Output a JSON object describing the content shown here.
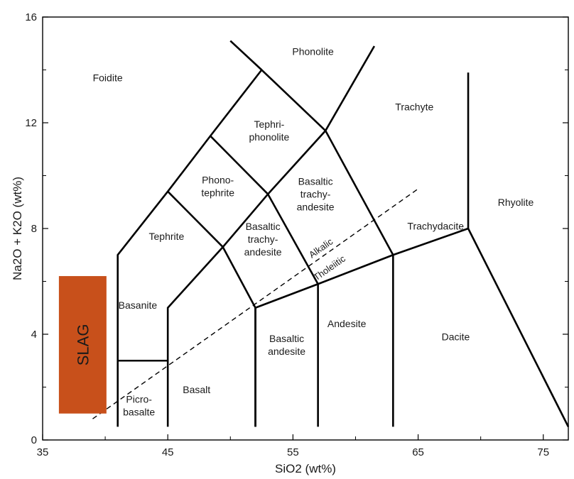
{
  "chart_data": {
    "type": "diagram",
    "xlabel": "SiO2 (wt%)",
    "ylabel": "Na2O + K2O (wt%)",
    "xlim": [
      35,
      77
    ],
    "ylim": [
      0,
      16
    ],
    "x_ticks": [
      35,
      45,
      55,
      65,
      75
    ],
    "y_ticks": [
      0,
      4,
      8,
      12,
      16
    ],
    "fields": [
      {
        "name": "Foidite",
        "lines": [
          "Foidite"
        ],
        "x": 40.2,
        "y": 13.7
      },
      {
        "name": "Phonolite",
        "lines": [
          "Phonolite"
        ],
        "x": 56.6,
        "y": 14.7
      },
      {
        "name": "Trachyte",
        "lines": [
          "Trachyte"
        ],
        "x": 64.7,
        "y": 12.6
      },
      {
        "name": "Tephri-phonolite",
        "lines": [
          "Tephri-",
          "phonolite"
        ],
        "x": 53.1,
        "y": 11.7
      },
      {
        "name": "Phono-tephrite",
        "lines": [
          "Phono-",
          "tephrite"
        ],
        "x": 49.0,
        "y": 9.6
      },
      {
        "name": "Basaltic trachy-andesite",
        "lines": [
          "Basaltic",
          "trachy-",
          "andesite"
        ],
        "x": 56.8,
        "y": 9.3
      },
      {
        "name": "Rhyolite",
        "lines": [
          "Rhyolite"
        ],
        "x": 72.8,
        "y": 9.0
      },
      {
        "name": "Tephrite",
        "lines": [
          "Tephrite"
        ],
        "x": 44.9,
        "y": 7.7
      },
      {
        "name": "Basaltic trachy-andesite",
        "lines": [
          "Basaltic",
          "trachy-",
          "andesite"
        ],
        "x": 52.6,
        "y": 7.6
      },
      {
        "name": "Trachydacite",
        "lines": [
          "Trachydacite"
        ],
        "x": 66.4,
        "y": 8.1
      },
      {
        "name": "Basanite",
        "lines": [
          "Basanite"
        ],
        "x": 42.6,
        "y": 5.1
      },
      {
        "name": "Andesite",
        "lines": [
          "Andesite"
        ],
        "x": 59.3,
        "y": 4.4
      },
      {
        "name": "Basaltic andesite",
        "lines": [
          "Basaltic",
          "andesite"
        ],
        "x": 54.5,
        "y": 3.6
      },
      {
        "name": "Dacite",
        "lines": [
          "Dacite"
        ],
        "x": 68.0,
        "y": 3.9
      },
      {
        "name": "Basalt",
        "lines": [
          "Basalt"
        ],
        "x": 47.3,
        "y": 1.9
      },
      {
        "name": "Picro-basalte",
        "lines": [
          "Picro-",
          "basalte"
        ],
        "x": 42.7,
        "y": 1.3
      }
    ],
    "boundary_lines": [
      [
        [
          41,
          0.5
        ],
        [
          41,
          7
        ],
        [
          45,
          9.4
        ],
        [
          48.4,
          11.5
        ],
        [
          52.5,
          14
        ],
        [
          57.6,
          11.7
        ],
        [
          63,
          7
        ]
      ],
      [
        [
          45,
          0.5
        ],
        [
          45,
          5
        ],
        [
          49.4,
          7.3
        ],
        [
          52,
          5
        ],
        [
          57,
          5.9
        ],
        [
          63,
          7
        ],
        [
          69,
          8
        ]
      ],
      [
        [
          52,
          0.5
        ],
        [
          52,
          5
        ]
      ],
      [
        [
          57,
          0.5
        ],
        [
          57,
          5.9
        ]
      ],
      [
        [
          63,
          0.5
        ],
        [
          63,
          7
        ]
      ],
      [
        [
          69,
          8
        ],
        [
          77,
          0.5
        ]
      ],
      [
        [
          69,
          8
        ],
        [
          69,
          13.9
        ]
      ],
      [
        [
          41,
          3
        ],
        [
          45,
          3
        ]
      ],
      [
        [
          45,
          9.4
        ],
        [
          49.4,
          7.3
        ],
        [
          53,
          9.3
        ],
        [
          57.6,
          11.7
        ],
        [
          61.5,
          14.9
        ]
      ],
      [
        [
          48.4,
          11.5
        ],
        [
          53,
          9.3
        ]
      ],
      [
        [
          52.5,
          14
        ],
        [
          50,
          15.1
        ]
      ],
      [
        [
          52,
          5
        ],
        [
          52,
          0.5
        ]
      ],
      [
        [
          53,
          9.3
        ],
        [
          57,
          5.9
        ]
      ]
    ],
    "alkalic_tholeiitic_line": [
      [
        39,
        0.8
      ],
      [
        65,
        9.5
      ]
    ],
    "alkalic_label": "Alkalic",
    "tholeiitic_label": "Tholeiitic",
    "slag": {
      "label": "SLAG",
      "x0": 36.3,
      "x1": 40.1,
      "y0": 1.0,
      "y1": 6.2,
      "color": "#c8501b"
    }
  }
}
